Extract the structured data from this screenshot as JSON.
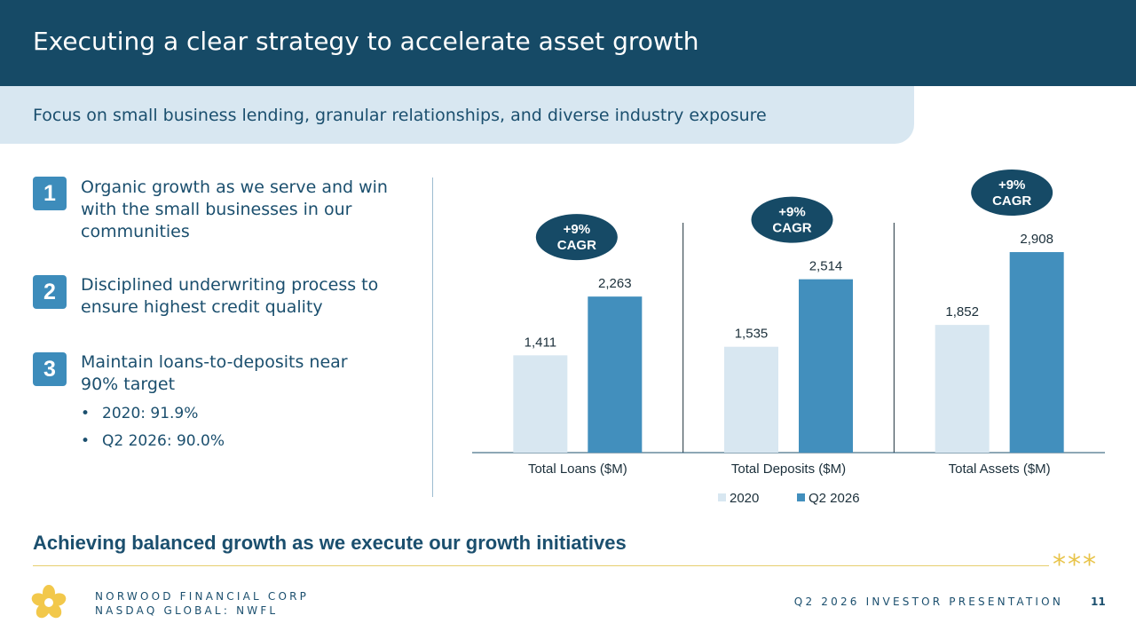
{
  "slide": {
    "title": "Executing a clear strategy to accelerate asset growth",
    "subtitle": "Focus on small business lending, granular relationships, and diverse industry exposure"
  },
  "points": [
    {
      "number": "1",
      "text": "Organic growth as we serve and win with the small businesses in our communities"
    },
    {
      "number": "2",
      "text": "Disciplined underwriting process to ensure highest credit quality"
    },
    {
      "number": "3",
      "text": "Maintain loans-to-deposits near 90% target"
    }
  ],
  "bullets": [
    {
      "marker": "•",
      "text": "2020: 91.9%"
    },
    {
      "marker": "•",
      "text": "Q2 2026: 90.0%"
    }
  ],
  "footer": {
    "heading": "Achieving balanced growth as we execute our growth initiatives",
    "stars": "***",
    "company_line1": "NORWOOD FINANCIAL CORP",
    "company_line2": "NASDAQ GLOBAL: NWFL",
    "presentation": "Q2 2026 INVESTOR PRESENTATION",
    "page": "11"
  },
  "colors": {
    "header": "#164a66",
    "subbar": "#d8e7f1",
    "series_2020": "#d8e7f1",
    "series_q2_2026": "#428fbd",
    "cagr_badge": "#164a66",
    "accent_gold": "#e8c44a"
  },
  "chart_data": {
    "type": "bar",
    "categories": [
      "Total Loans ($M)",
      "Total Deposits ($M)",
      "Total Assets ($M)"
    ],
    "series": [
      {
        "name": "2020",
        "values": [
          1411,
          1535,
          1852
        ],
        "labels": [
          "1,411",
          "1,535",
          "1,852"
        ],
        "color": "#d8e7f1"
      },
      {
        "name": "Q2 2026",
        "values": [
          2263,
          2514,
          2908
        ],
        "labels": [
          "2,263",
          "2,514",
          "2,908"
        ],
        "color": "#428fbd"
      }
    ],
    "annotations": [
      {
        "category": "Total Loans ($M)",
        "lines": [
          "+9%",
          "CAGR"
        ]
      },
      {
        "category": "Total Deposits ($M)",
        "lines": [
          "+9%",
          "CAGR"
        ]
      },
      {
        "category": "Total Assets ($M)",
        "lines": [
          "+9%",
          "CAGR"
        ]
      }
    ],
    "ylim": [
      0,
      3000
    ],
    "grid": false,
    "legend": "bottom"
  }
}
